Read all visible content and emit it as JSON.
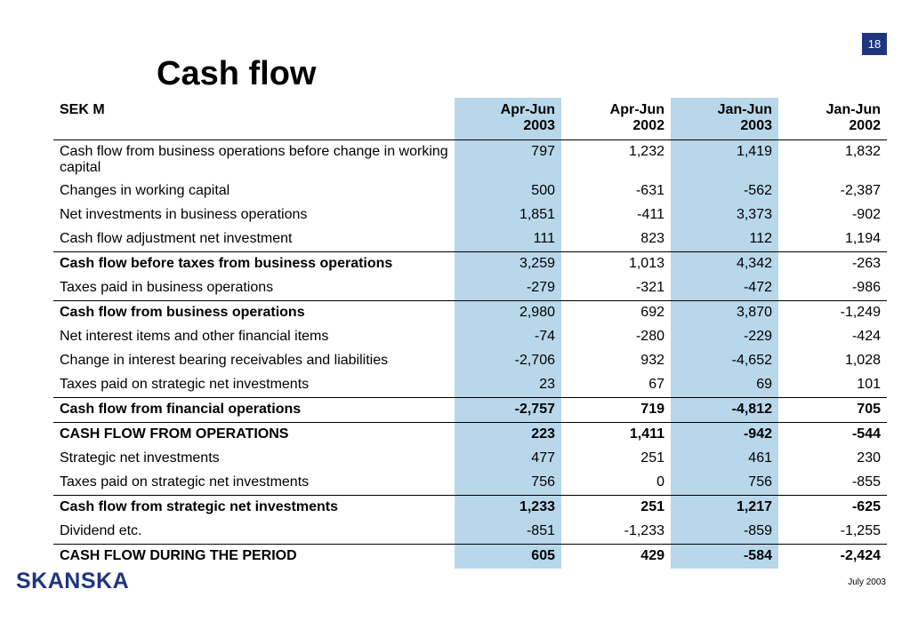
{
  "page_number": "18",
  "title": "Cash flow",
  "footer": {
    "logo": "SKANSKA",
    "date": "July 2003"
  },
  "table": {
    "headers": [
      [
        "SEK M",
        ""
      ],
      [
        "Apr-Jun",
        "2003"
      ],
      [
        "Apr-Jun",
        "2002"
      ],
      [
        "Jan-Jun",
        "2003"
      ],
      [
        "Jan-Jun",
        "2002"
      ]
    ],
    "rows": [
      {
        "label": "Cash flow from business operations before change in working capital",
        "values": [
          "797",
          "1,232",
          "1,419",
          "1,832"
        ],
        "style": "normal",
        "sep": true
      },
      {
        "label": "Changes in working capital",
        "values": [
          "500",
          "-631",
          "-562",
          "-2,387"
        ],
        "style": "normal",
        "sep": false
      },
      {
        "label": "Net investments in business operations",
        "values": [
          "1,851",
          "-411",
          "3,373",
          "-902"
        ],
        "style": "normal",
        "sep": false
      },
      {
        "label": "Cash flow adjustment net investment",
        "values": [
          "111",
          "823",
          "112",
          "1,194"
        ],
        "style": "normal",
        "sep": false
      },
      {
        "label": "Cash flow before taxes from business operations",
        "values": [
          "3,259",
          "1,013",
          "4,342",
          "-263"
        ],
        "style": "label-bold",
        "sep": true
      },
      {
        "label": "Taxes paid in business operations",
        "values": [
          "-279",
          "-321",
          "-472",
          "-986"
        ],
        "style": "normal",
        "sep": false
      },
      {
        "label": "Cash flow from business operations",
        "values": [
          "2,980",
          "692",
          "3,870",
          "-1,249"
        ],
        "style": "label-bold",
        "sep": true
      },
      {
        "label": "Net interest items and other financial items",
        "values": [
          "-74",
          "-280",
          "-229",
          "-424"
        ],
        "style": "normal",
        "sep": false
      },
      {
        "label": "Change in interest bearing receivables and liabilities",
        "values": [
          "-2,706",
          "932",
          "-4,652",
          "1,028"
        ],
        "style": "normal",
        "sep": false
      },
      {
        "label": "Taxes paid on strategic net investments",
        "values": [
          "23",
          "67",
          "69",
          "101"
        ],
        "style": "normal",
        "sep": false
      },
      {
        "label": "Cash flow from financial operations",
        "values": [
          "-2,757",
          "719",
          "-4,812",
          "705"
        ],
        "style": "bold",
        "sep": true
      },
      {
        "label": "CASH FLOW FROM OPERATIONS",
        "values": [
          "223",
          "1,411",
          "-942",
          "-544"
        ],
        "style": "bold",
        "sep": true
      },
      {
        "label": "Strategic net investments",
        "values": [
          "477",
          "251",
          "461",
          "230"
        ],
        "style": "normal",
        "sep": false
      },
      {
        "label": "Taxes paid on strategic net investments",
        "values": [
          "756",
          "0",
          "756",
          "-855"
        ],
        "style": "normal",
        "sep": false
      },
      {
        "label": "Cash flow from strategic net investments",
        "values": [
          "1,233",
          "251",
          "1,217",
          "-625"
        ],
        "style": "bold",
        "sep": true
      },
      {
        "label": "Dividend etc.",
        "values": [
          "-851",
          "-1,233",
          "-859",
          "-1,255"
        ],
        "style": "normal",
        "sep": false
      },
      {
        "label": "CASH FLOW DURING THE PERIOD",
        "values": [
          "605",
          "429",
          "-584",
          "-2,424"
        ],
        "style": "bold",
        "sep": true
      }
    ],
    "highlight_color": "#b8d7ea"
  }
}
